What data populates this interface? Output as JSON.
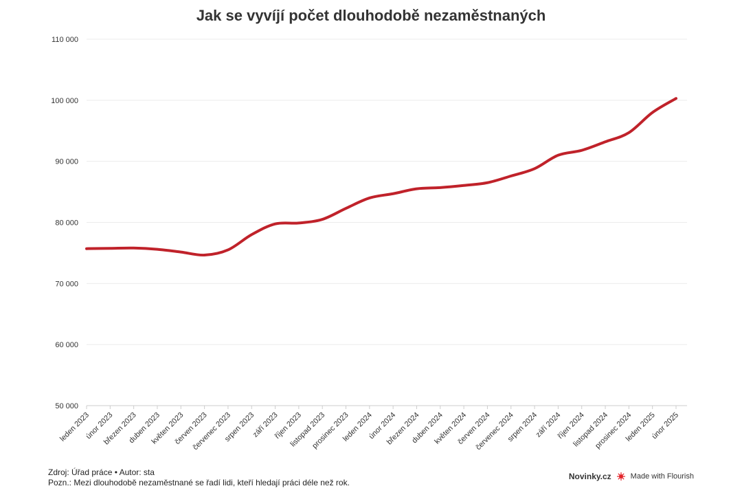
{
  "chart_data": {
    "type": "line",
    "title": "Jak se vyvíjí počet dlouhodobě nezaměstnaných",
    "categories": [
      "leden 2023",
      "únor 2023",
      "březen 2023",
      "duben 2023",
      "květen 2023",
      "červen 2023",
      "červenec 2023",
      "srpen 2023",
      "září 2023",
      "říjen 2023",
      "listopad 2023",
      "prosinec 2023",
      "leden 2024",
      "únor 2024",
      "březen 2024",
      "duben 2024",
      "květen 2024",
      "červen 2024",
      "červenec 2024",
      "srpen 2024",
      "září 2024",
      "říjen 2024",
      "listopad 2024",
      "prosinec 2024",
      "leden 2025",
      "únor 2025"
    ],
    "series": [
      {
        "values": [
          75700,
          75750,
          75800,
          75600,
          75150,
          74650,
          75500,
          78000,
          79750,
          79900,
          80500,
          82300,
          84000,
          84700,
          85500,
          85700,
          86050,
          86500,
          87600,
          88800,
          91000,
          91800,
          93200,
          94700,
          98000,
          100300
        ]
      }
    ],
    "y_ticks": [
      50000,
      60000,
      70000,
      80000,
      90000,
      100000,
      110000
    ],
    "y_tick_labels": [
      "50 000",
      "60 000",
      "70 000",
      "80 000",
      "90 000",
      "100 000",
      "110 000"
    ],
    "ylim": [
      50000,
      110000
    ],
    "grid": true,
    "line_color": "#c0222a"
  },
  "footer": {
    "source": "Zdroj: Úřad práce • Autor: sta",
    "note": "Pozn.: Mezi dlouhodobě nezaměstnané se řadí lidi, kteří hledají práci déle než rok.",
    "brand": "Novinky.cz",
    "made_with": "Made with Flourish"
  }
}
